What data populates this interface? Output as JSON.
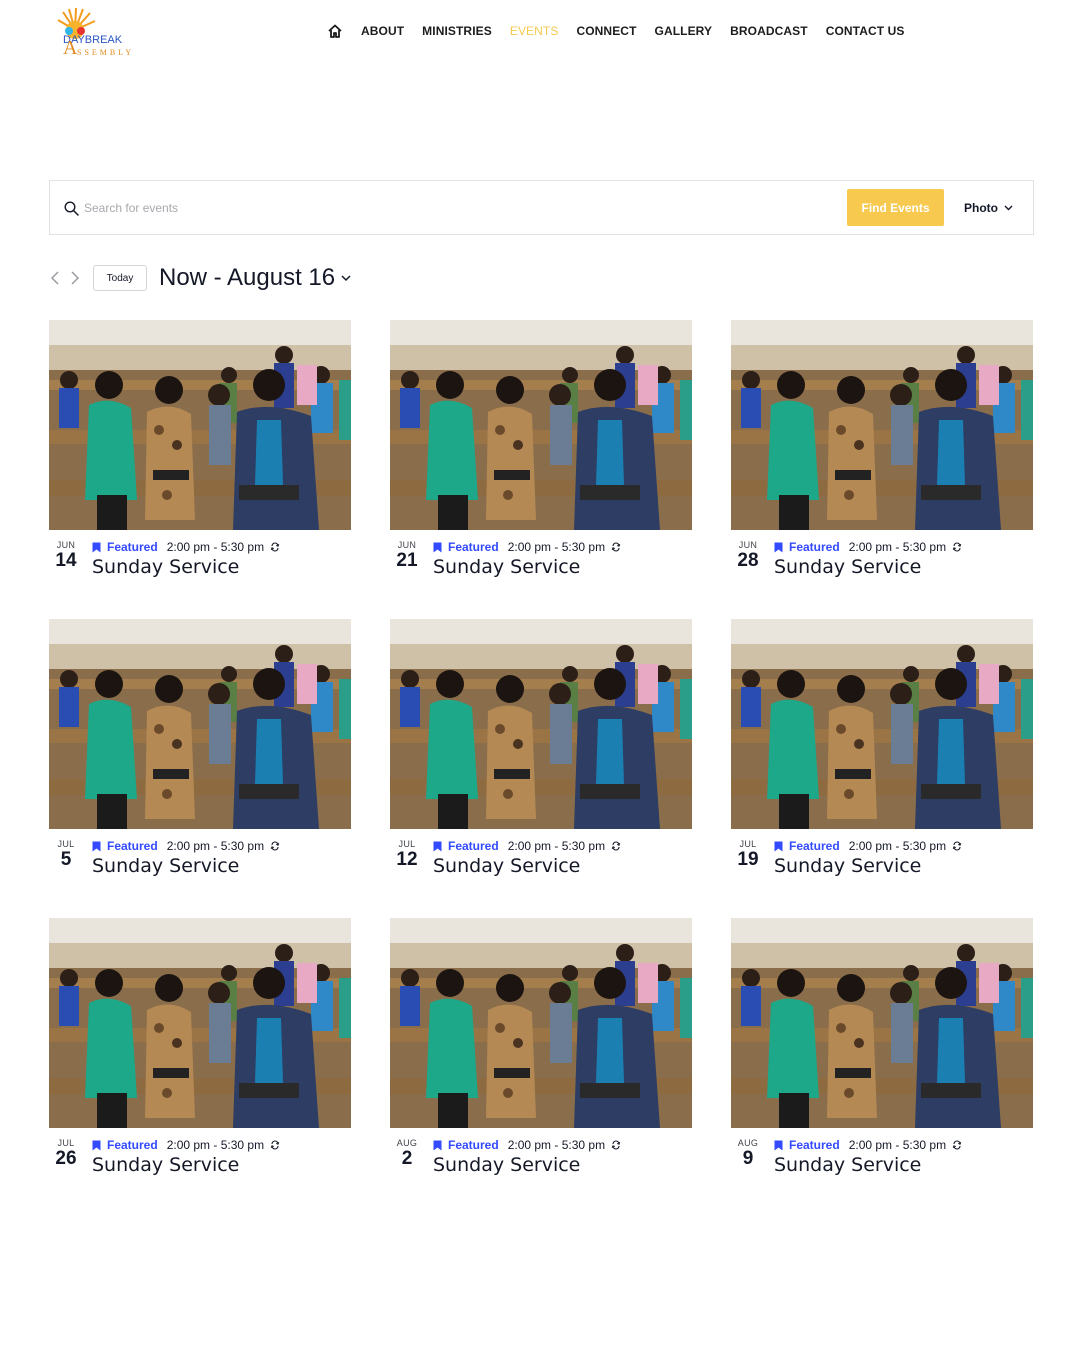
{
  "site": {
    "logo_text_top": "DAYBREAK",
    "logo_text_bottom": "SSEMBLY",
    "logo_letter": "A"
  },
  "nav": {
    "items": [
      "ABOUT",
      "MINISTRIES",
      "EVENTS",
      "CONNECT",
      "GALLERY",
      "BROADCAST",
      "CONTACT US"
    ],
    "active": "EVENTS",
    "home_icon": "home-icon"
  },
  "search": {
    "placeholder": "Search for events",
    "value": "",
    "button_label": "Find Events",
    "view_label": "Photo"
  },
  "datebar": {
    "today_label": "Today",
    "range_label": "Now - August 16"
  },
  "colors": {
    "accent": "#f7c94f",
    "featured": "#334aff",
    "text": "#141827"
  },
  "events": [
    {
      "month": "JUN",
      "day": "14",
      "featured": "Featured",
      "time": "2:00 pm - 5:30 pm",
      "title": "Sunday Service"
    },
    {
      "month": "JUN",
      "day": "21",
      "featured": "Featured",
      "time": "2:00 pm - 5:30 pm",
      "title": "Sunday Service"
    },
    {
      "month": "JUN",
      "day": "28",
      "featured": "Featured",
      "time": "2:00 pm - 5:30 pm",
      "title": "Sunday Service"
    },
    {
      "month": "JUL",
      "day": "5",
      "featured": "Featured",
      "time": "2:00 pm - 5:30 pm",
      "title": "Sunday Service"
    },
    {
      "month": "JUL",
      "day": "12",
      "featured": "Featured",
      "time": "2:00 pm - 5:30 pm",
      "title": "Sunday Service"
    },
    {
      "month": "JUL",
      "day": "19",
      "featured": "Featured",
      "time": "2:00 pm - 5:30 pm",
      "title": "Sunday Service"
    },
    {
      "month": "JUL",
      "day": "26",
      "featured": "Featured",
      "time": "2:00 pm - 5:30 pm",
      "title": "Sunday Service"
    },
    {
      "month": "AUG",
      "day": "2",
      "featured": "Featured",
      "time": "2:00 pm - 5:30 pm",
      "title": "Sunday Service"
    },
    {
      "month": "AUG",
      "day": "9",
      "featured": "Featured",
      "time": "2:00 pm - 5:30 pm",
      "title": "Sunday Service"
    }
  ]
}
